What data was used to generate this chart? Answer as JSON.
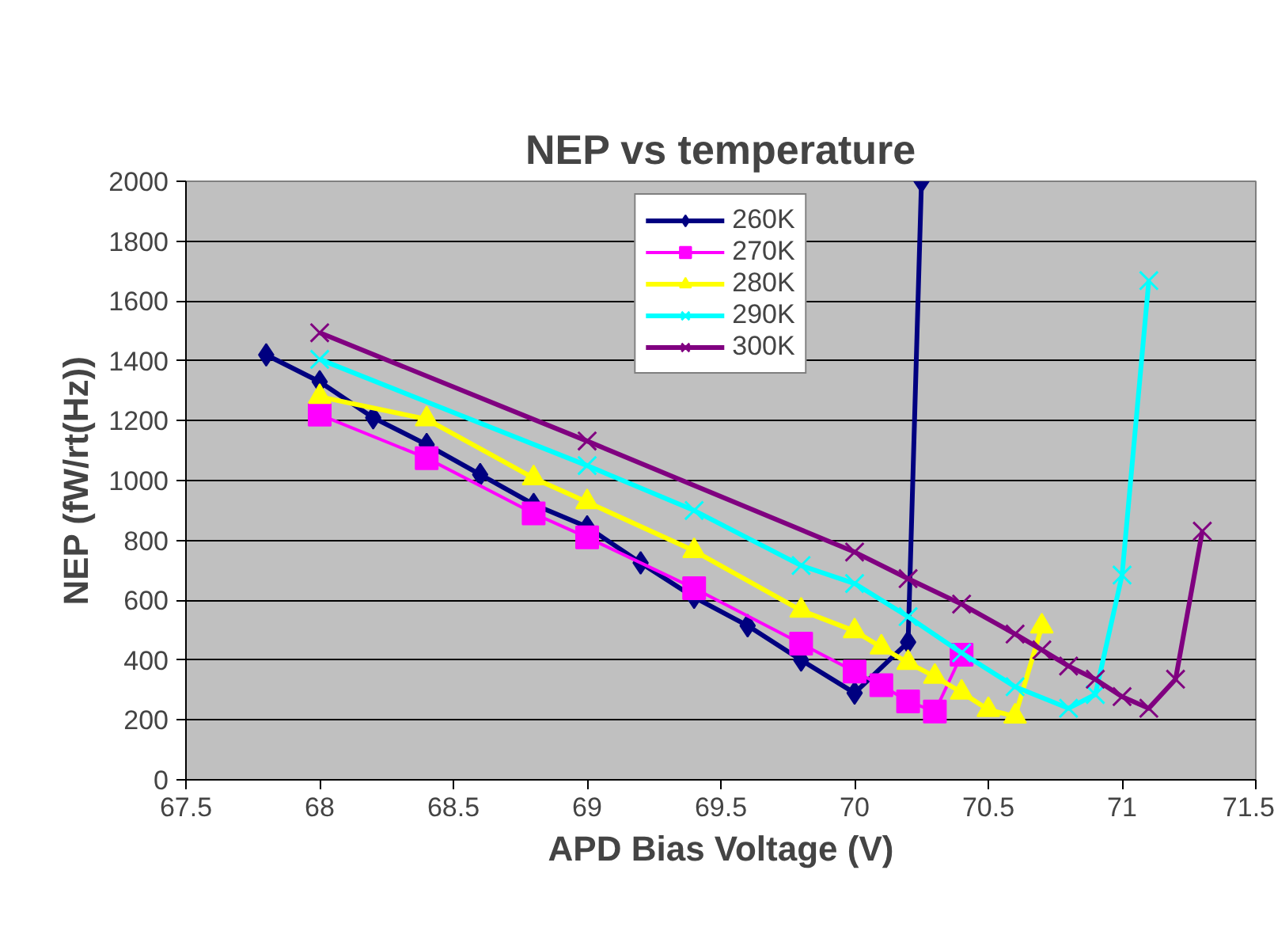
{
  "chart_data": {
    "type": "line",
    "title": "NEP vs temperature",
    "xlabel": "APD Bias Voltage (V)",
    "ylabel": "NEP (fW/rt(Hz))",
    "xlim": [
      67.5,
      71.5
    ],
    "xticks": [
      67.5,
      68,
      68.5,
      69,
      69.5,
      70,
      70.5,
      71,
      71.5
    ],
    "ylim": [
      0,
      2000
    ],
    "yticks": [
      0,
      200,
      400,
      600,
      800,
      1000,
      1200,
      1400,
      1600,
      1800,
      2000
    ],
    "grid": "y",
    "legend": "top",
    "series": [
      {
        "name": "260K",
        "color": "#000080",
        "marker": "diamond",
        "x": [
          67.8,
          68.0,
          68.2,
          68.4,
          68.6,
          68.8,
          69.0,
          69.2,
          69.4,
          69.6,
          69.8,
          70.0,
          70.2,
          70.25
        ],
        "values": [
          1420,
          1330,
          1210,
          1120,
          1020,
          920,
          845,
          725,
          610,
          515,
          400,
          290,
          460,
          2000
        ]
      },
      {
        "name": "270K",
        "color": "#ff00ff",
        "marker": "square",
        "x": [
          68.0,
          68.4,
          68.8,
          69.0,
          69.4,
          69.8,
          70.0,
          70.1,
          70.2,
          70.3,
          70.4
        ],
        "values": [
          1220,
          1075,
          890,
          810,
          640,
          455,
          362,
          316,
          262,
          228,
          418
        ]
      },
      {
        "name": "280K",
        "color": "#ffff00",
        "marker": "triangle",
        "x": [
          68.0,
          68.4,
          68.8,
          69.0,
          69.4,
          69.8,
          70.0,
          70.1,
          70.2,
          70.3,
          70.4,
          70.5,
          70.6,
          70.7
        ],
        "values": [
          1280,
          1205,
          1008,
          928,
          765,
          566,
          497,
          443,
          391,
          345,
          292,
          234,
          212,
          513
        ]
      },
      {
        "name": "290K",
        "color": "#00ffff",
        "marker": "cross",
        "x": [
          68.0,
          69.0,
          69.4,
          69.8,
          70.0,
          70.2,
          70.4,
          70.6,
          70.8,
          70.9,
          71.0,
          71.1
        ],
        "values": [
          1405,
          1050,
          900,
          716,
          656,
          545,
          424,
          311,
          239,
          285,
          684,
          1668
        ]
      },
      {
        "name": "300K",
        "color": "#800080",
        "marker": "cross",
        "x": [
          68.0,
          69.0,
          70.0,
          70.2,
          70.4,
          70.6,
          70.7,
          70.8,
          70.9,
          71.0,
          71.1,
          71.2,
          71.3
        ],
        "values": [
          1494,
          1132,
          761,
          672,
          587,
          487,
          434,
          380,
          336,
          278,
          239,
          336,
          831
        ]
      }
    ]
  }
}
